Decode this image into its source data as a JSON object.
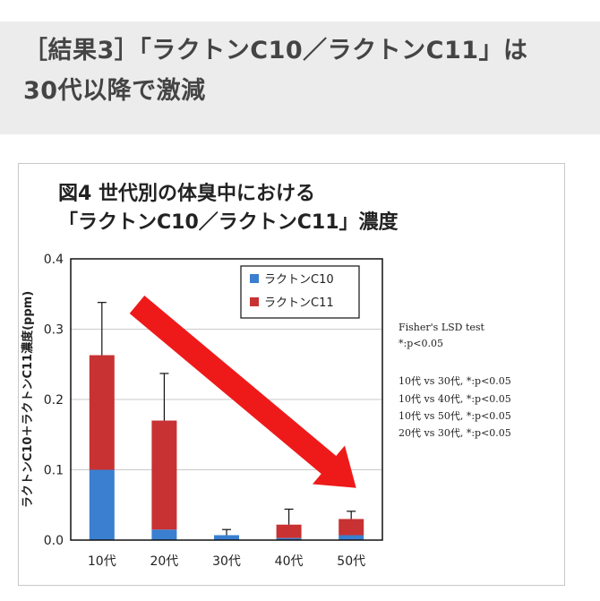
{
  "header": {
    "line1": "［結果3］「ラクトンC10／ラクトンC11」は",
    "line2": "30代以降で激減"
  },
  "chart_data": {
    "type": "bar",
    "stacked": true,
    "title_line1": "図4 世代別の体臭中における",
    "title_line2": "「ラクトンC10／ラクトンC11」濃度",
    "ylabel": "ラクトンC10＋ラクトンC11濃度(ppm)",
    "xlabel": "",
    "categories": [
      "10代",
      "20代",
      "30代",
      "40代",
      "50代"
    ],
    "ylim": [
      0,
      0.4
    ],
    "yticks": [
      "0.0",
      "0.1",
      "0.2",
      "0.3",
      "0.4"
    ],
    "grid": true,
    "series": [
      {
        "name": "ラクトンC10",
        "color": "#3a7fd0",
        "values": [
          0.1,
          0.015,
          0.007,
          0.003,
          0.007
        ]
      },
      {
        "name": "ラクトンC11",
        "color": "#c83232",
        "values": [
          0.163,
          0.155,
          0.0,
          0.019,
          0.023
        ]
      }
    ],
    "error_tops": [
      0.338,
      0.237,
      0.015,
      0.044,
      0.041
    ],
    "legend_position": "top-right",
    "arrow_color": "#ee1a1a",
    "annotations": [
      "Fisher's LSD test",
      "*:p<0.05",
      "10代 vs 30代, *:p<0.05",
      "10代 vs 40代, *:p<0.05",
      "10代 vs 50代, *:p<0.05",
      "20代 vs 30代, *:p<0.05"
    ]
  }
}
